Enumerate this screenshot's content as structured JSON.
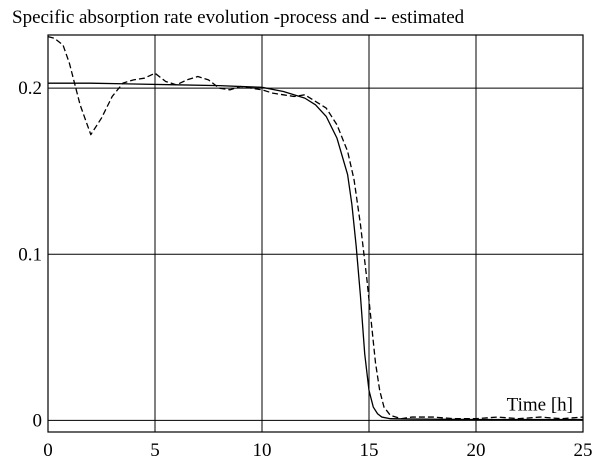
{
  "chart_data": {
    "type": "line",
    "title": "Specific absorption rate evolution -process and -- estimated",
    "xlabel": "Time [h]",
    "ylabel": "",
    "xlim": [
      0,
      25
    ],
    "ylim": [
      -0.007,
      0.232
    ],
    "grid": true,
    "x_ticks": [
      0,
      5,
      10,
      15,
      20,
      25
    ],
    "x_tick_labels": [
      "0",
      "5",
      "10",
      "15",
      "20",
      "25"
    ],
    "y_ticks": [
      0,
      0.1,
      0.2
    ],
    "y_tick_labels": [
      "0",
      "0.1",
      "0.2"
    ],
    "series": [
      {
        "style": "solid",
        "x": [
          0,
          2,
          4,
          6,
          8,
          10,
          11,
          12,
          12.5,
          13,
          13.5,
          14,
          14.2,
          14.4,
          14.6,
          14.8,
          15,
          15.2,
          15.4,
          15.6,
          16,
          17,
          20,
          25
        ],
        "y": [
          0.203,
          0.203,
          0.2025,
          0.202,
          0.2015,
          0.2005,
          0.198,
          0.194,
          0.19,
          0.183,
          0.17,
          0.148,
          0.13,
          0.105,
          0.075,
          0.04,
          0.018,
          0.008,
          0.004,
          0.002,
          0.001,
          0.0008,
          0.0005,
          0.0005
        ]
      },
      {
        "style": "dashed",
        "x": [
          0,
          0.3,
          0.7,
          1,
          1.5,
          2,
          2.5,
          3,
          3.5,
          4,
          4.5,
          5,
          5.5,
          6,
          6.5,
          7,
          7.5,
          8,
          8.5,
          9,
          9.5,
          10,
          10.5,
          11,
          11.5,
          12,
          12.5,
          13,
          13.5,
          14,
          14.3,
          14.6,
          14.9,
          15.1,
          15.3,
          15.5,
          15.7,
          16,
          16.5,
          17,
          18,
          19,
          20,
          21,
          22,
          23,
          24,
          25
        ],
        "y": [
          0.231,
          0.23,
          0.226,
          0.215,
          0.19,
          0.172,
          0.182,
          0.195,
          0.203,
          0.205,
          0.206,
          0.209,
          0.204,
          0.202,
          0.205,
          0.207,
          0.205,
          0.2,
          0.199,
          0.201,
          0.2,
          0.199,
          0.197,
          0.196,
          0.195,
          0.196,
          0.192,
          0.188,
          0.178,
          0.162,
          0.145,
          0.118,
          0.085,
          0.06,
          0.035,
          0.018,
          0.008,
          0.003,
          0.001,
          0.002,
          0.002,
          0.001,
          0.001,
          0.002,
          0.001,
          0.002,
          0.001,
          0.002
        ]
      }
    ]
  }
}
